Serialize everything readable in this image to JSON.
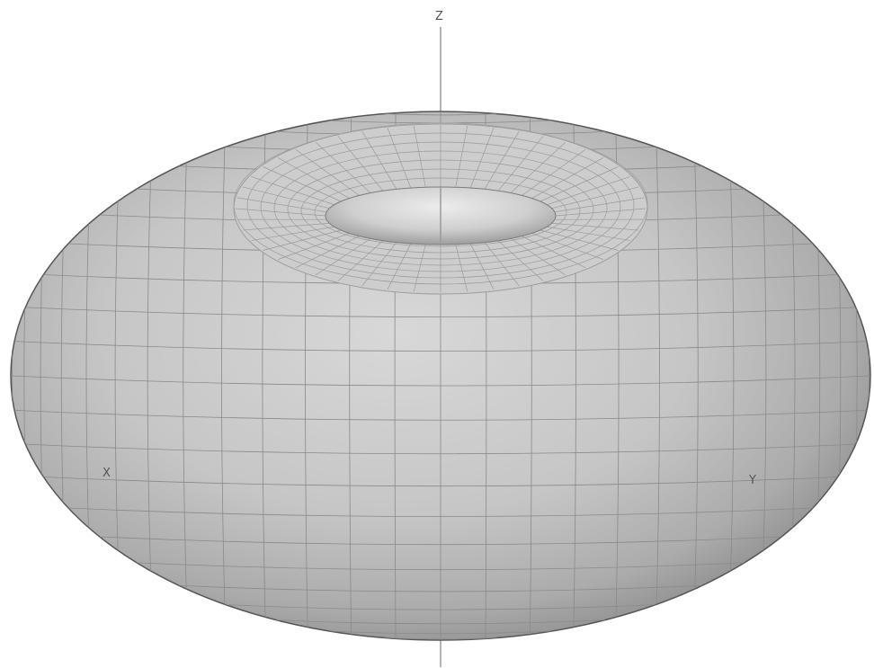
{
  "axes": {
    "z_label": "Z",
    "x_label": "X",
    "y_label": "Y"
  },
  "surface": {
    "shape": "torus",
    "style": "wireframe-shaded",
    "fill_color": "#bdbdbd",
    "edge_color": "#4a4a4a",
    "mesh_color": "#8a8a8a"
  },
  "axis_color": "#9a9a9a"
}
